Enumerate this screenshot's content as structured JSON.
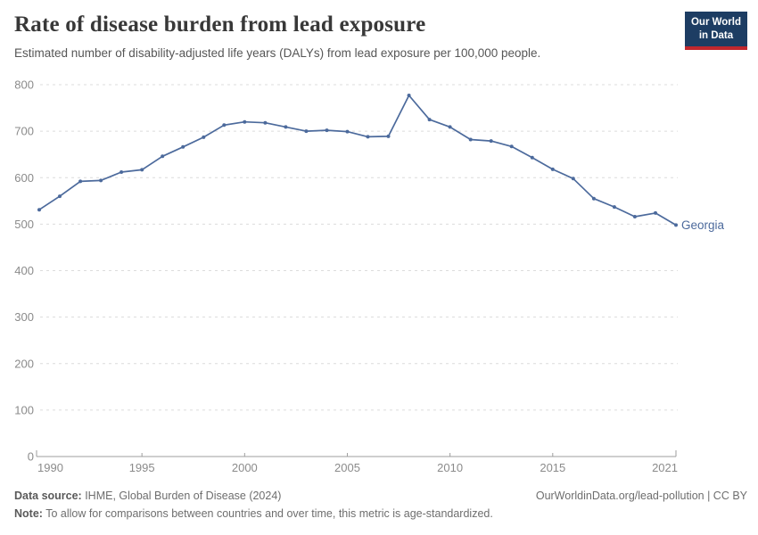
{
  "header": {
    "title": "Rate of disease burden from lead exposure",
    "subtitle": "Estimated number of disability-adjusted life years (DALYs) from lead exposure per 100,000 people.",
    "logo": {
      "line1": "Our World",
      "line2": "in Data",
      "bg_color": "#1d3d63",
      "bar_color": "#c1272d"
    }
  },
  "chart_data": {
    "type": "line",
    "title": "Rate of disease burden from lead exposure",
    "xlabel": "",
    "ylabel": "",
    "xlim": [
      1990,
      2021
    ],
    "ylim": [
      0,
      800
    ],
    "x_ticks": [
      1990,
      1995,
      2000,
      2005,
      2010,
      2015,
      2021
    ],
    "y_ticks": [
      0,
      100,
      200,
      300,
      400,
      500,
      600,
      700,
      800
    ],
    "grid": "horizontal-dashed",
    "legend_position": "end-of-line-label",
    "end_label": "Georgia",
    "series": [
      {
        "name": "Georgia",
        "color": "#4C6A9C",
        "x": [
          1990,
          1991,
          1992,
          1993,
          1994,
          1995,
          1996,
          1997,
          1998,
          1999,
          2000,
          2001,
          2002,
          2003,
          2004,
          2005,
          2006,
          2007,
          2008,
          2009,
          2010,
          2011,
          2012,
          2013,
          2014,
          2015,
          2016,
          2017,
          2018,
          2019,
          2020,
          2021
        ],
        "values": [
          531,
          560,
          592,
          594,
          612,
          617,
          646,
          666,
          687,
          713,
          720,
          718,
          709,
          700,
          702,
          699,
          688,
          689,
          777,
          725,
          709,
          682,
          679,
          667,
          643,
          618,
          598,
          555,
          537,
          516,
          524,
          498
        ]
      }
    ],
    "colors": {
      "line": "#4C6A9C",
      "grid": "#dcdcdc",
      "axis": "#9e9e9e",
      "tick_text": "#8b8b8b"
    }
  },
  "footer": {
    "source_label": "Data source:",
    "source_value": " IHME, Global Burden of Disease (2024)",
    "note_label": "Note:",
    "note_value": " To allow for comparisons between countries and over time, this metric is age-standardized.",
    "link": "OurWorldinData.org/lead-pollution | CC BY"
  }
}
